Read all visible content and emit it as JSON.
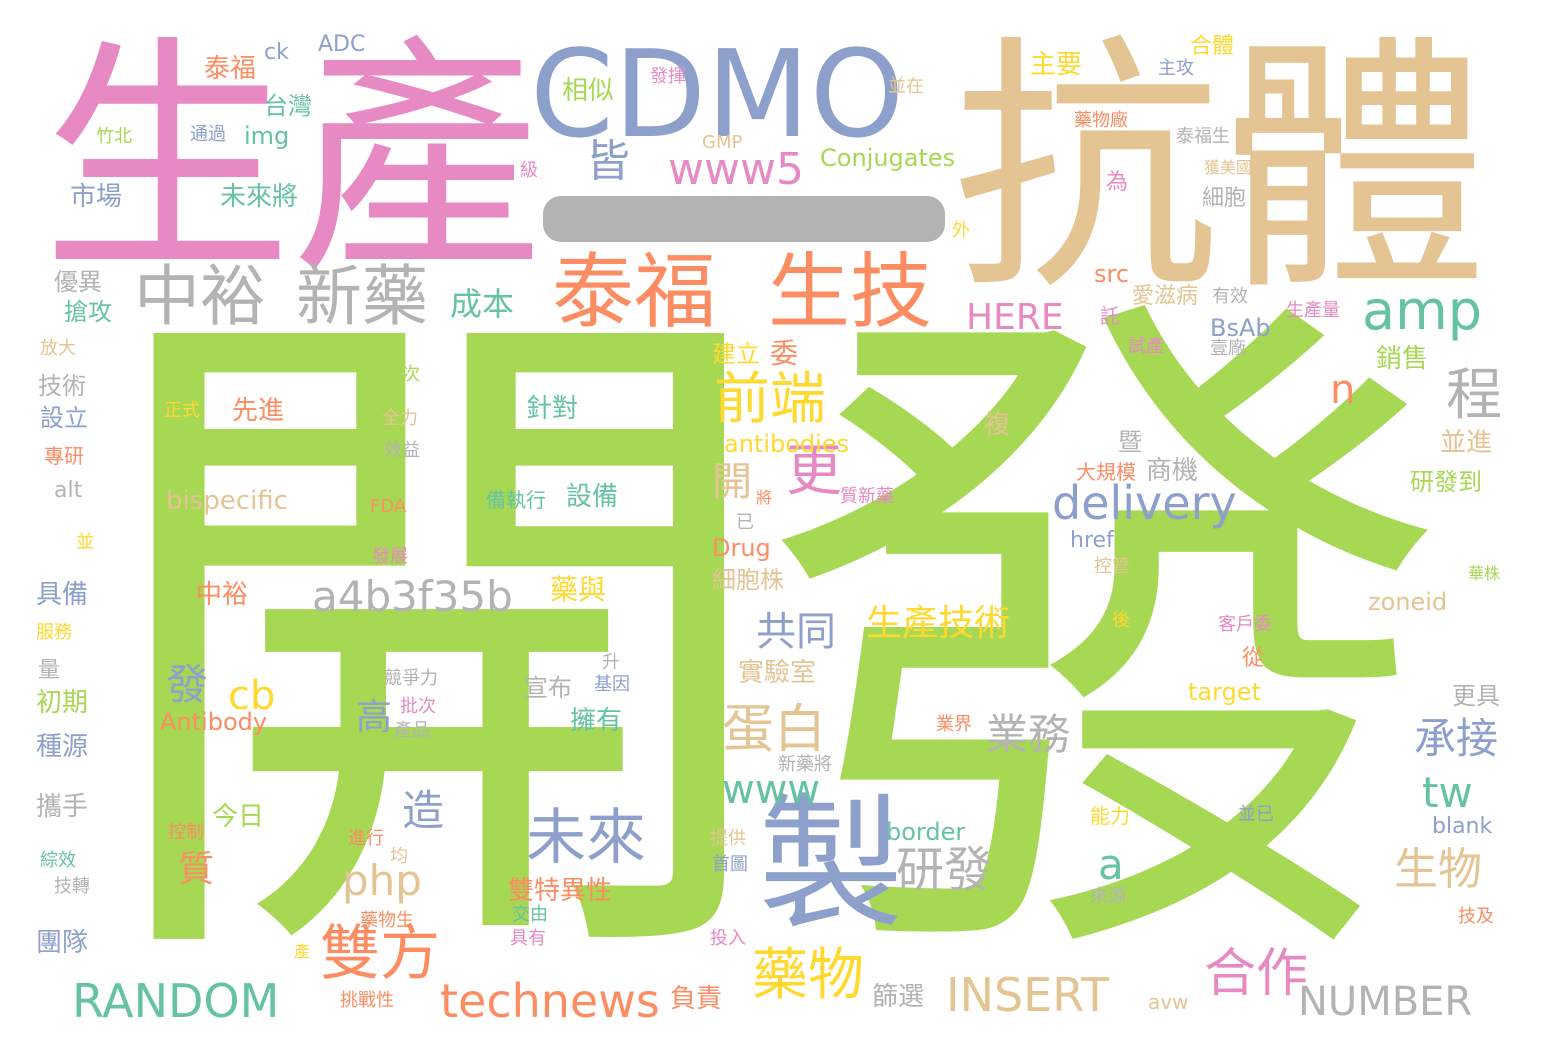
{
  "palette": {
    "green": "#a6d854",
    "pink": "#e78ac3",
    "blue": "#8da0cb",
    "tan": "#e5c494",
    "orange": "#fc8d62",
    "teal": "#66c2a5",
    "gray": "#b3b3b3",
    "yellow": "#ffd92f"
  },
  "words": [
    {
      "text": "開",
      "color": "green"
    },
    {
      "text": "發",
      "color": "green"
    },
    {
      "text": "生產",
      "color": "pink"
    },
    {
      "text": "抗體",
      "color": "tan"
    },
    {
      "text": "CDMO",
      "color": "blue"
    },
    {
      "text": "製",
      "color": "blue"
    },
    {
      "text": "泰福",
      "color": "orange"
    },
    {
      "text": "生技",
      "color": "orange"
    },
    {
      "text": "中裕",
      "color": "gray"
    },
    {
      "text": "新藥",
      "color": "gray"
    },
    {
      "text": "amp",
      "color": "teal"
    },
    {
      "text": "www5",
      "color": "pink"
    },
    {
      "text": "皆",
      "color": "blue"
    },
    {
      "text": "Conjugates",
      "color": "green"
    },
    {
      "text": "前端",
      "color": "yellow"
    },
    {
      "text": "更",
      "color": "pink"
    },
    {
      "text": "程",
      "color": "gray"
    },
    {
      "text": "delivery",
      "color": "blue"
    },
    {
      "text": "a4b3f35b",
      "color": "gray"
    },
    {
      "text": "共同",
      "color": "blue"
    },
    {
      "text": "生產技術",
      "color": "yellow"
    },
    {
      "text": "蛋白",
      "color": "tan"
    },
    {
      "text": "未來",
      "color": "blue"
    },
    {
      "text": "雙方",
      "color": "orange"
    },
    {
      "text": "technews",
      "color": "orange"
    },
    {
      "text": "RANDOM",
      "color": "teal"
    },
    {
      "text": "INSERT",
      "color": "tan"
    },
    {
      "text": "NUMBER",
      "color": "gray"
    },
    {
      "text": "藥物",
      "color": "yellow"
    },
    {
      "text": "合作",
      "color": "pink"
    },
    {
      "text": "研發",
      "color": "gray"
    },
    {
      "text": "php",
      "color": "tan"
    },
    {
      "text": "cb",
      "color": "yellow"
    },
    {
      "text": "www",
      "color": "teal"
    },
    {
      "text": "業務",
      "color": "gray"
    },
    {
      "text": "承接",
      "color": "blue"
    },
    {
      "text": "tw",
      "color": "teal"
    },
    {
      "text": "生物",
      "color": "tan"
    },
    {
      "text": "HERE",
      "color": "pink"
    },
    {
      "text": "成本",
      "color": "teal"
    },
    {
      "text": "antibodies",
      "color": "yellow"
    },
    {
      "text": "bispecific",
      "color": "tan"
    },
    {
      "text": "n",
      "color": "orange"
    },
    {
      "text": "a",
      "color": "teal"
    },
    {
      "text": "開",
      "color": "tan"
    },
    {
      "text": "造",
      "color": "blue"
    },
    {
      "text": "發",
      "color": "blue"
    },
    {
      "text": "高",
      "color": "blue"
    },
    {
      "text": "質",
      "color": "orange"
    },
    {
      "text": "今日",
      "color": "green"
    },
    {
      "text": "Antibody",
      "color": "orange"
    },
    {
      "text": "中裕",
      "color": "orange"
    },
    {
      "text": "藥與",
      "color": "yellow"
    },
    {
      "text": "Drug",
      "color": "orange"
    },
    {
      "text": "細胞株",
      "color": "tan"
    },
    {
      "text": "設備",
      "color": "teal"
    },
    {
      "text": "備執行",
      "color": "teal"
    },
    {
      "text": "針對",
      "color": "teal"
    },
    {
      "text": "先進",
      "color": "orange"
    },
    {
      "text": "建立",
      "color": "yellow"
    },
    {
      "text": "委",
      "color": "orange"
    },
    {
      "text": "ADC",
      "color": "blue"
    },
    {
      "text": "ck",
      "color": "blue"
    },
    {
      "text": "泰福",
      "color": "orange"
    },
    {
      "text": "台灣",
      "color": "teal"
    },
    {
      "text": "img",
      "color": "teal"
    },
    {
      "text": "GMP",
      "color": "tan"
    },
    {
      "text": "相似",
      "color": "green"
    },
    {
      "text": "發揮",
      "color": "pink"
    },
    {
      "text": "主要",
      "color": "yellow"
    },
    {
      "text": "合體",
      "color": "yellow"
    },
    {
      "text": "主攻",
      "color": "blue"
    },
    {
      "text": "並在",
      "color": "tan"
    },
    {
      "text": "藥物廠",
      "color": "orange"
    },
    {
      "text": "泰福生",
      "color": "gray"
    },
    {
      "text": "獲美國",
      "color": "tan"
    },
    {
      "text": "細胞",
      "color": "gray"
    },
    {
      "text": "為",
      "color": "pink"
    },
    {
      "text": "外",
      "color": "yellow"
    },
    {
      "text": "級",
      "color": "pink"
    },
    {
      "text": "竹北",
      "color": "green"
    },
    {
      "text": "通過",
      "color": "blue"
    },
    {
      "text": "市場",
      "color": "blue"
    },
    {
      "text": "未來將",
      "color": "teal"
    },
    {
      "text": "優異",
      "color": "gray"
    },
    {
      "text": "搶攻",
      "color": "teal"
    },
    {
      "text": "放大",
      "color": "tan"
    },
    {
      "text": "技術",
      "color": "gray"
    },
    {
      "text": "設立",
      "color": "blue"
    },
    {
      "text": "正式",
      "color": "yellow"
    },
    {
      "text": "多次",
      "color": "green"
    },
    {
      "text": "全力",
      "color": "tan"
    },
    {
      "text": "效益",
      "color": "gray"
    },
    {
      "text": "專研",
      "color": "orange"
    },
    {
      "text": "alt",
      "color": "gray"
    },
    {
      "text": "FDA",
      "color": "orange"
    },
    {
      "text": "並",
      "color": "yellow"
    },
    {
      "text": "發展",
      "color": "pink"
    },
    {
      "text": "具備",
      "color": "blue"
    },
    {
      "text": "服務",
      "color": "yellow"
    },
    {
      "text": "量",
      "color": "gray"
    },
    {
      "text": "初期",
      "color": "green"
    },
    {
      "text": "種源",
      "color": "blue"
    },
    {
      "text": "攜手",
      "color": "gray"
    },
    {
      "text": "綜效",
      "color": "teal"
    },
    {
      "text": "技轉",
      "color": "gray"
    },
    {
      "text": "團隊",
      "color": "blue"
    },
    {
      "text": "控制",
      "color": "orange"
    },
    {
      "text": "產",
      "color": "yellow"
    },
    {
      "text": "挑戰性",
      "color": "orange"
    },
    {
      "text": "投入",
      "color": "pink"
    },
    {
      "text": "具有",
      "color": "pink"
    },
    {
      "text": "交由",
      "color": "teal"
    },
    {
      "text": "藥物生",
      "color": "orange"
    },
    {
      "text": "雙特異性",
      "color": "orange"
    },
    {
      "text": "進行",
      "color": "orange"
    },
    {
      "text": "均",
      "color": "tan"
    },
    {
      "text": "首圖",
      "color": "blue"
    },
    {
      "text": "提供",
      "color": "tan"
    },
    {
      "text": "border",
      "color": "teal"
    },
    {
      "text": "競爭力",
      "color": "gray"
    },
    {
      "text": "批次",
      "color": "pink"
    },
    {
      "text": "產品",
      "color": "gray"
    },
    {
      "text": "升",
      "color": "gray"
    },
    {
      "text": "基因",
      "color": "blue"
    },
    {
      "text": "宣布",
      "color": "gray"
    },
    {
      "text": "擁有",
      "color": "teal"
    },
    {
      "text": "實驗室",
      "color": "tan"
    },
    {
      "text": "新藥將",
      "color": "gray"
    },
    {
      "text": "業界",
      "color": "orange"
    },
    {
      "text": "篩選",
      "color": "gray"
    },
    {
      "text": "負責",
      "color": "orange"
    },
    {
      "text": "avw",
      "color": "tan"
    },
    {
      "text": "來源",
      "color": "gray"
    },
    {
      "text": "能力",
      "color": "yellow"
    },
    {
      "text": "並已",
      "color": "blue"
    },
    {
      "text": "技及",
      "color": "orange"
    },
    {
      "text": "blank",
      "color": "blue"
    },
    {
      "text": "更具",
      "color": "gray"
    },
    {
      "text": "target",
      "color": "yellow"
    },
    {
      "text": "從",
      "color": "orange"
    },
    {
      "text": "客戶委",
      "color": "pink"
    },
    {
      "text": "後",
      "color": "yellow"
    },
    {
      "text": "zoneid",
      "color": "tan"
    },
    {
      "text": "華株",
      "color": "green"
    },
    {
      "text": "控管",
      "color": "tan"
    },
    {
      "text": "href",
      "color": "blue"
    },
    {
      "text": "研發到",
      "color": "green"
    },
    {
      "text": "並進",
      "color": "tan"
    },
    {
      "text": "複",
      "color": "tan"
    },
    {
      "text": "暨",
      "color": "gray"
    },
    {
      "text": "商機",
      "color": "gray"
    },
    {
      "text": "大規模",
      "color": "orange"
    },
    {
      "text": "將",
      "color": "orange"
    },
    {
      "text": "質新藥",
      "color": "pink"
    },
    {
      "text": "已",
      "color": "gray"
    },
    {
      "text": "銷售",
      "color": "green"
    },
    {
      "text": "試產",
      "color": "pink"
    },
    {
      "text": "託",
      "color": "pink"
    },
    {
      "text": "BsAb",
      "color": "blue"
    },
    {
      "text": "壹廠",
      "color": "gray"
    },
    {
      "text": "愛滋病",
      "color": "tan"
    },
    {
      "text": "有效",
      "color": "gray"
    },
    {
      "text": "生產量",
      "color": "pink"
    },
    {
      "text": "src",
      "color": "orange"
    }
  ]
}
